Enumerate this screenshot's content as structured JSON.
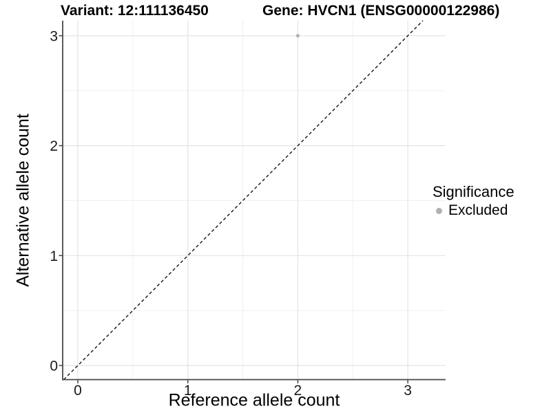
{
  "figure": {
    "titles": {
      "variant": "Variant: 12:111136450",
      "gene": "Gene: HVCN1 (ENSG00000122986)"
    }
  },
  "chart_data": {
    "type": "scatter",
    "xlabel": "Reference allele count",
    "ylabel": "Alternative allele count",
    "x_ticks": [
      0,
      1,
      2,
      3
    ],
    "y_ticks": [
      0,
      1,
      2,
      3
    ],
    "xlim": [
      -0.14,
      3.34
    ],
    "ylim": [
      -0.13,
      3.14
    ],
    "grid": {
      "major": true,
      "minor": true,
      "minor_interval": 0.5
    },
    "series": [
      {
        "name": "Excluded",
        "color": "#b3b3b3",
        "points": [
          {
            "x": 2,
            "y": 3
          }
        ]
      }
    ],
    "reference_line": {
      "kind": "identity y=x",
      "dashed": true,
      "color": "#111111"
    },
    "legend": {
      "title": "Significance",
      "position": "right",
      "entries": [
        {
          "label": "Excluded",
          "color": "#b0b0b0",
          "marker": "circle"
        }
      ]
    }
  },
  "colors": {
    "background": "#ffffff",
    "grid_major": "#e3e3e3",
    "grid_minor": "#f0f0f0",
    "axis": "#474747",
    "tick_text": "#1a1a1a"
  }
}
